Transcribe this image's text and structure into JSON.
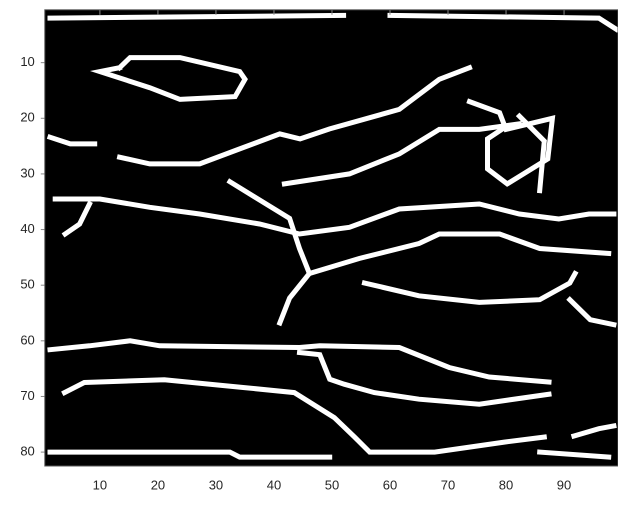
{
  "chart_data": {
    "type": "image",
    "background": "#000000",
    "color": "#ffffff",
    "xlim": [
      0.5,
      99.3
    ],
    "ylim": [
      0.5,
      82.5
    ],
    "y_reversed": true,
    "xticks": [
      10,
      20,
      30,
      40,
      50,
      60,
      70,
      80,
      90
    ],
    "yticks": [
      10,
      20,
      30,
      40,
      50,
      60,
      70,
      80
    ],
    "edges": [
      {
        "x": [
          1.4,
          52
        ],
        "y": [
          2,
          1.5
        ]
      },
      {
        "x": [
          60,
          96,
          99
        ],
        "y": [
          1.5,
          2,
          4
        ]
      },
      {
        "x": [
          13.4,
          15.2,
          23.8,
          34.1,
          35,
          33.3,
          23.8,
          18.6,
          10,
          13.4
        ],
        "y": [
          10.9,
          9.1,
          9.1,
          11.6,
          13,
          16.1,
          16.6,
          14.5,
          11.6,
          10.9
        ]
      },
      {
        "x": [
          13.4,
          18.6,
          27.2,
          34.1,
          41,
          44.5,
          49.6,
          61.6,
          68.5,
          73.7
        ],
        "y": [
          27,
          28.2,
          28.2,
          25.5,
          22.8,
          23.7,
          21.9,
          18.4,
          13,
          10.9
        ]
      },
      {
        "x": [
          1.4,
          4.9,
          9.1
        ],
        "y": [
          23.4,
          24.6,
          24.6
        ]
      },
      {
        "x": [
          41.8,
          53,
          61.6,
          68.5,
          75.4,
          82.3
        ],
        "y": [
          31.8,
          30,
          26.4,
          22,
          22,
          21
        ]
      },
      {
        "x": [
          73.7,
          78.9,
          80,
          88,
          87.2,
          80.2,
          76.8,
          76.8,
          79.4
        ],
        "y": [
          17,
          19,
          22,
          20,
          27.3,
          31.8,
          29.1,
          23.7,
          21.9
        ]
      },
      {
        "x": [
          82.3,
          86.6,
          85.8
        ],
        "y": [
          19.6,
          24.1,
          33
        ]
      },
      {
        "x": [
          2.3,
          10,
          18.6,
          27.2,
          37.5,
          44.4,
          53,
          61.6,
          75.4,
          82.3,
          89.1,
          94.3,
          98.6
        ],
        "y": [
          34.5,
          34.5,
          36,
          37.2,
          39,
          40.8,
          39.6,
          36.3,
          35.4,
          37.2,
          38.1,
          37.2,
          37.2
        ]
      },
      {
        "x": [
          4,
          6.5,
          8.2
        ],
        "y": [
          40.8,
          39,
          35.4
        ]
      },
      {
        "x": [
          32.4,
          42.7,
          44.4,
          46.1,
          42.7,
          41
        ],
        "y": [
          31.4,
          38,
          43.4,
          47.9,
          52.3,
          56.8
        ]
      },
      {
        "x": [
          46.1,
          54.7,
          65,
          68.5,
          78.9,
          85.8,
          97.7
        ],
        "y": [
          47.9,
          45.2,
          42.5,
          40.8,
          40.8,
          43.4,
          44.3
        ]
      },
      {
        "x": [
          55.6,
          65,
          75.4,
          85.8,
          91,
          91.9
        ],
        "y": [
          49.6,
          51.9,
          53.1,
          52.6,
          49.6,
          47.9
        ]
      },
      {
        "x": [
          91,
          94.5,
          98.6
        ],
        "y": [
          52.6,
          56.2,
          57.1
        ]
      },
      {
        "x": [
          1.4,
          8.2,
          15.2,
          20.3,
          44.4,
          47.9,
          61.6,
          70.2,
          77.1,
          87.4
        ],
        "y": [
          61.6,
          60.9,
          60,
          60.9,
          61.2,
          60.9,
          61.2,
          64.8,
          66.5,
          67.4
        ]
      },
      {
        "x": [
          44.4,
          47.9,
          49.6,
          52.1,
          57.3,
          65,
          75.4,
          87.4
        ],
        "y": [
          62.1,
          62.5,
          66.9,
          67.8,
          69.3,
          70.5,
          71.4,
          69.6
        ]
      },
      {
        "x": [
          3.9,
          7.3,
          21.1,
          34.9,
          43.5,
          50.4,
          53.9,
          56.5,
          67.7,
          79.7,
          86.6
        ],
        "y": [
          69.3,
          67.5,
          67,
          68.4,
          69.3,
          73.8,
          77.3,
          80,
          80,
          78.2,
          77.3
        ]
      },
      {
        "x": [
          1.4,
          32.4,
          34.1,
          49.6
        ],
        "y": [
          80,
          80,
          80.9,
          80.9
        ]
      },
      {
        "x": [
          85.8,
          97.7
        ],
        "y": [
          80,
          80.9
        ]
      },
      {
        "x": [
          91.7,
          96,
          98.6
        ],
        "y": [
          77.1,
          75.8,
          75.3
        ]
      }
    ]
  }
}
